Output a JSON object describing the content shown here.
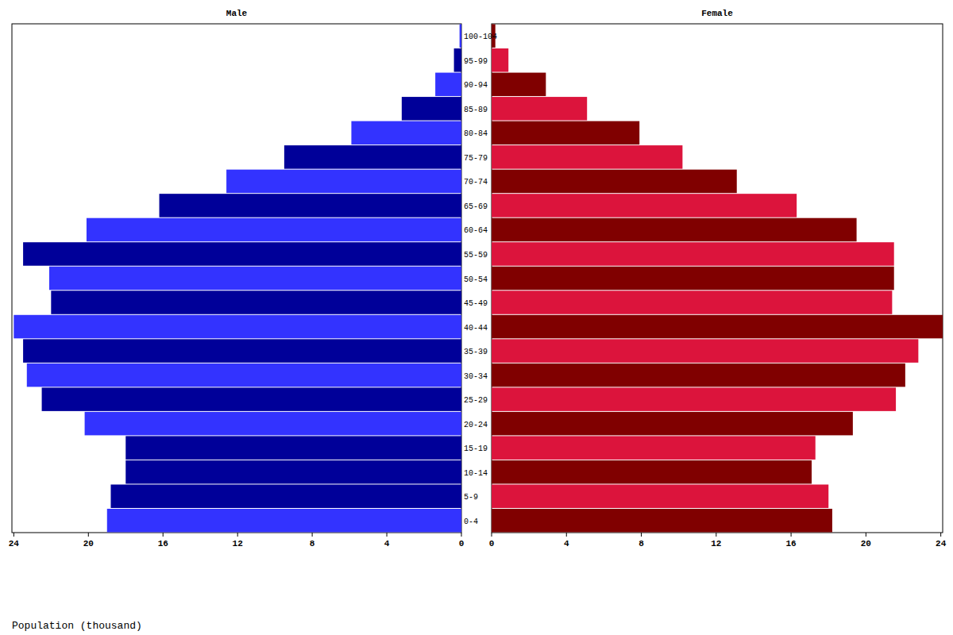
{
  "chart_data": {
    "type": "bar",
    "orientation": "horizontal",
    "xlabel": "Population (thousand)",
    "categories": [
      "0-4",
      "5-9",
      "10-14",
      "15-19",
      "20-24",
      "25-29",
      "30-34",
      "35-39",
      "40-44",
      "45-49",
      "50-54",
      "55-59",
      "60-64",
      "65-69",
      "70-74",
      "75-79",
      "80-84",
      "85-89",
      "90-94",
      "95-99",
      "100-104"
    ],
    "series": [
      {
        "name": "Male",
        "colors": [
          "#3333ff",
          "#000099",
          "#000099",
          "#000099",
          "#3333ff",
          "#000099",
          "#3333ff",
          "#000099",
          "#3333ff",
          "#000099",
          "#3333ff",
          "#000099",
          "#3333ff",
          "#000099",
          "#3333ff",
          "#000099",
          "#3333ff",
          "#000099",
          "#3333ff",
          "#000099",
          "#3333ff"
        ],
        "values": [
          19.0,
          18.8,
          18.0,
          18.0,
          20.2,
          22.5,
          23.3,
          23.5,
          24.0,
          22.0,
          22.1,
          23.5,
          20.1,
          16.2,
          12.6,
          9.5,
          5.9,
          3.2,
          1.4,
          0.4,
          0.1
        ]
      },
      {
        "name": "Female",
        "colors": [
          "#800000",
          "#dc143c",
          "#800000",
          "#dc143c",
          "#800000",
          "#dc143c",
          "#800000",
          "#dc143c",
          "#800000",
          "#dc143c",
          "#800000",
          "#dc143c",
          "#800000",
          "#dc143c",
          "#800000",
          "#dc143c",
          "#800000",
          "#dc143c",
          "#800000",
          "#dc143c",
          "#800000"
        ],
        "values": [
          18.2,
          18.0,
          17.1,
          17.3,
          19.3,
          21.6,
          22.1,
          22.8,
          24.1,
          21.4,
          21.5,
          21.5,
          19.5,
          16.3,
          13.1,
          10.2,
          7.9,
          5.1,
          2.9,
          0.9,
          0.2
        ]
      }
    ],
    "xlim": [
      0,
      24.1
    ],
    "xticks": [
      0,
      4,
      8,
      12,
      16,
      20,
      24
    ]
  }
}
